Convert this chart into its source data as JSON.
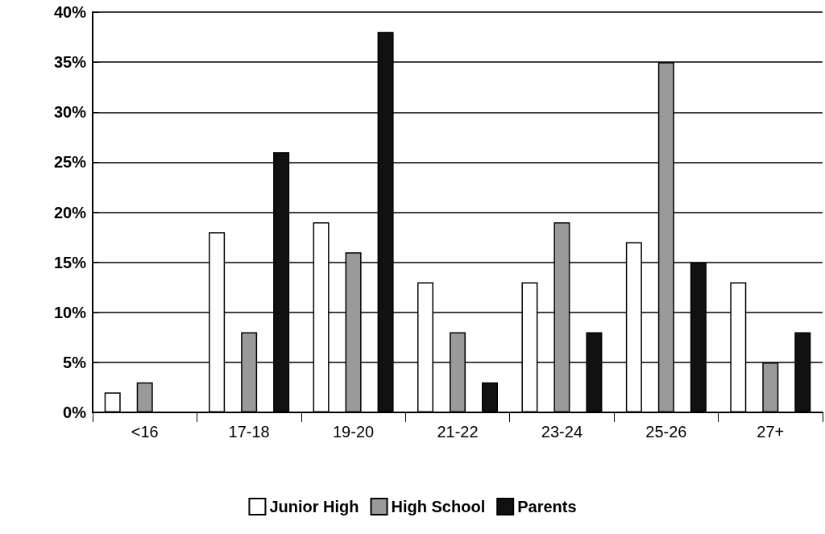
{
  "chart_data": {
    "type": "bar",
    "categories": [
      "<16",
      "17-18",
      "19-20",
      "21-22",
      "23-24",
      "25-26",
      "27+"
    ],
    "series": [
      {
        "name": "Junior High",
        "color": "#ffffff",
        "values": [
          2,
          18,
          19,
          13,
          13,
          17,
          13
        ]
      },
      {
        "name": "High School",
        "color": "#9a9a9a",
        "values": [
          3,
          8,
          16,
          8,
          19,
          35,
          5
        ]
      },
      {
        "name": "Parents",
        "color": "#111111",
        "values": [
          null,
          26,
          38,
          3,
          8,
          15,
          8
        ]
      }
    ],
    "ylim": [
      0,
      40
    ],
    "yticks": [
      {
        "value": 0,
        "label": "0%"
      },
      {
        "value": 5,
        "label": "5%"
      },
      {
        "value": 10,
        "label": "10%"
      },
      {
        "value": 15,
        "label": "15%"
      },
      {
        "value": 20,
        "label": "20%"
      },
      {
        "value": 25,
        "label": "25%"
      },
      {
        "value": 30,
        "label": "30%"
      },
      {
        "value": 35,
        "label": "35%"
      },
      {
        "value": 40,
        "label": "40%"
      }
    ],
    "grid": "y",
    "legend": "bottom"
  }
}
